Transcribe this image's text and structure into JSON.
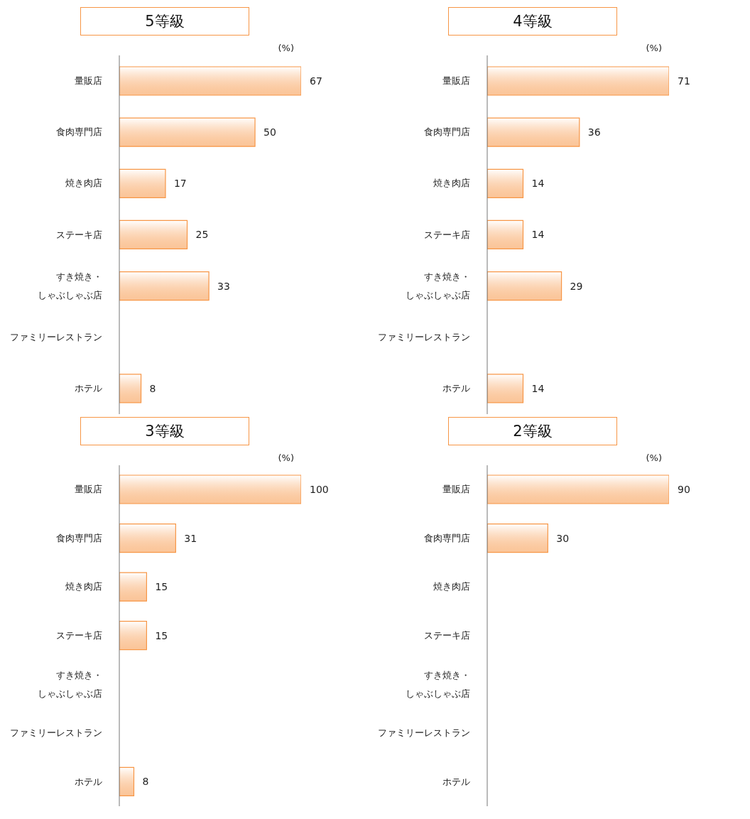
{
  "chart_data": [
    {
      "type": "bar",
      "orientation": "horizontal",
      "title": "5等級",
      "annotations": [
        "(%)"
      ],
      "categories": [
        "量販店",
        "食肉専門店",
        "焼き肉店",
        "ステーキ店",
        "すき焼き・しゃぶしゃぶ店",
        "ファミリーレストラン",
        "ホテル"
      ],
      "values": [
        67,
        50,
        17,
        25,
        33,
        null,
        8
      ],
      "color": "#f79646",
      "data_labels": true,
      "grid": false,
      "legend": false
    },
    {
      "type": "bar",
      "orientation": "horizontal",
      "title": "4等級",
      "annotations": [
        "(%)"
      ],
      "categories": [
        "量販店",
        "食肉専門店",
        "焼き肉店",
        "ステーキ店",
        "すき焼き・しゃぶしゃぶ店",
        "ファミリーレストラン",
        "ホテル"
      ],
      "values": [
        71,
        36,
        14,
        14,
        29,
        null,
        14
      ],
      "color": "#f79646",
      "data_labels": true,
      "grid": false,
      "legend": false
    },
    {
      "type": "bar",
      "orientation": "horizontal",
      "title": "3等級",
      "annotations": [
        "(%)"
      ],
      "categories": [
        "量販店",
        "食肉専門店",
        "焼き肉店",
        "ステーキ店",
        "すき焼き・しゃぶしゃぶ店",
        "ファミリーレストラン",
        "ホテル"
      ],
      "values": [
        100,
        31,
        15,
        15,
        null,
        null,
        8
      ],
      "color": "#f79646",
      "data_labels": true,
      "grid": false,
      "legend": false
    },
    {
      "type": "bar",
      "orientation": "horizontal",
      "title": "2等級",
      "annotations": [
        "(%)"
      ],
      "categories": [
        "量販店",
        "食肉専門店",
        "焼き肉店",
        "ステーキ店",
        "すき焼き・しゃぶしゃぶ店",
        "ファミリーレストラン",
        "ホテル"
      ],
      "values": [
        90,
        30,
        null,
        null,
        null,
        null,
        null
      ],
      "color": "#f79646",
      "data_labels": true,
      "grid": false,
      "legend": false
    }
  ]
}
